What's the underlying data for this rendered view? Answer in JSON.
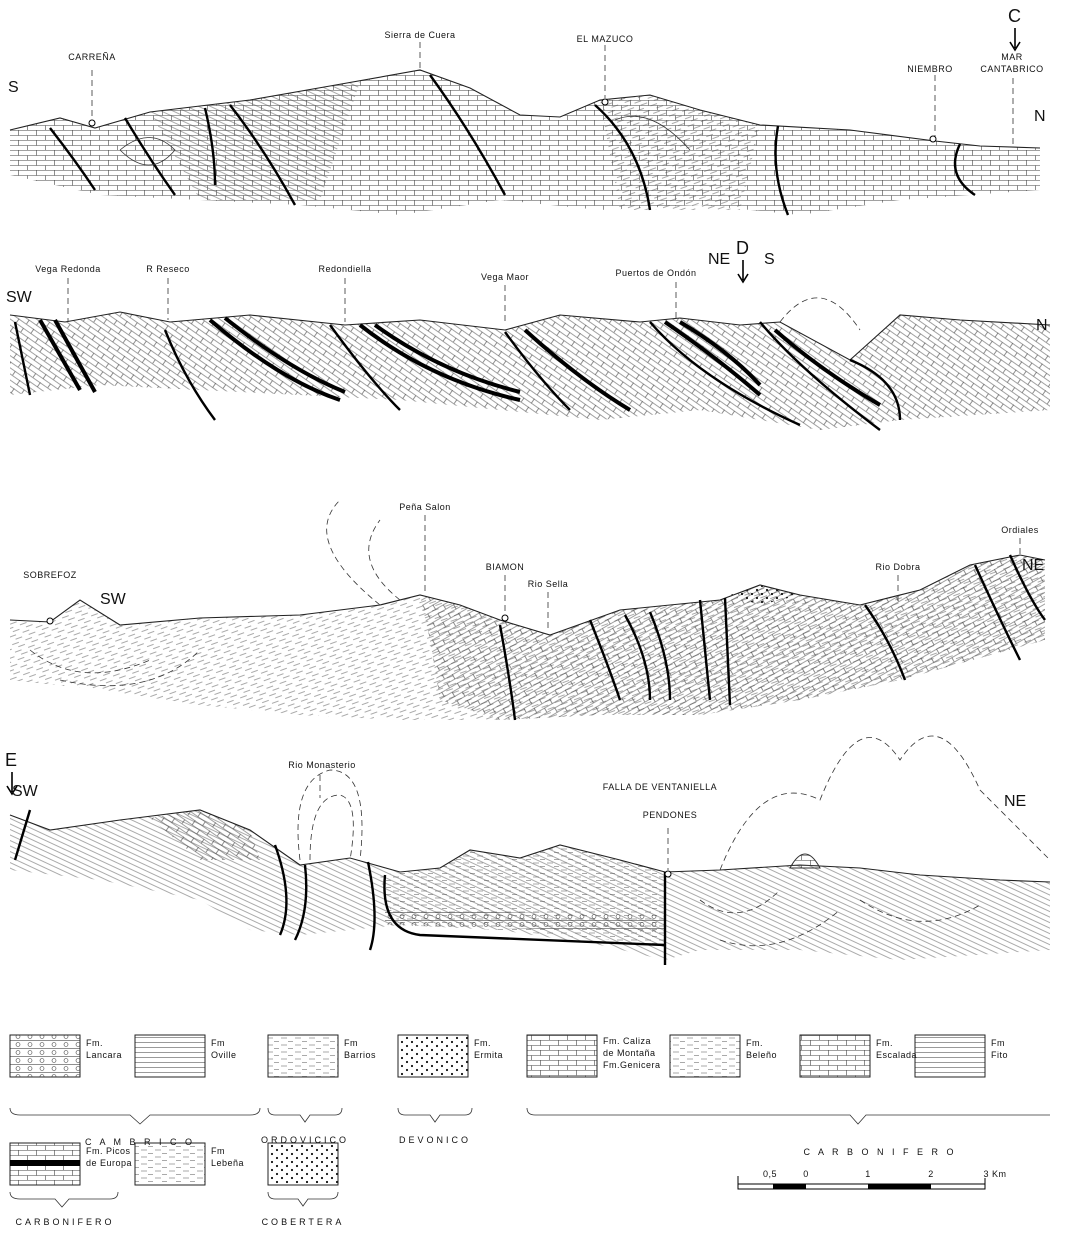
{
  "sections": [
    {
      "marker": "C",
      "left": "S",
      "right": "N",
      "places": [
        "CARREÑA",
        "Sierra de Cuera",
        "EL MAZUCO",
        "NIEMBRO",
        "MAR",
        "CANTABRICO"
      ]
    },
    {
      "marker": "D",
      "left": "SW",
      "right": "N",
      "orientation": [
        "NE",
        "S"
      ],
      "places": [
        "Vega Redonda",
        "R Reseco",
        "Redondiella",
        "Vega Maor",
        "Puertos de Ondón"
      ]
    },
    {
      "left": "SW",
      "right": "NE",
      "places": [
        "SOBREFOZ",
        "Peña Salon",
        "BIAMON",
        "Rio Sella",
        "Rio Dobra",
        "Ordiales"
      ]
    },
    {
      "marker": "E",
      "left": "SW",
      "right": "NE",
      "fault": "FALLA DE VENTANIELLA",
      "places": [
        "Rio Monasterio",
        "PENDONES"
      ]
    }
  ],
  "legend": {
    "formations": [
      {
        "lines": [
          "Fm.",
          "Lancara"
        ]
      },
      {
        "lines": [
          "Fm",
          "Oville"
        ]
      },
      {
        "lines": [
          "Fm",
          "Barrios"
        ]
      },
      {
        "lines": [
          "Fm.",
          "Ermita"
        ]
      },
      {
        "lines": [
          "Fm. Caliza",
          "de Montaña",
          "Fm.Genicera"
        ]
      },
      {
        "lines": [
          "Fm.",
          "Beleño"
        ]
      },
      {
        "lines": [
          "Fm.",
          "Escalada"
        ]
      },
      {
        "lines": [
          "Fm",
          "Fito"
        ]
      },
      {
        "lines": [
          "Fm. Picos",
          "de Europa"
        ]
      },
      {
        "lines": [
          "Fm",
          "Lebeña"
        ]
      }
    ],
    "groups": [
      "C A M B R I C O",
      "ORDOVICICO",
      "DEVONICO",
      "C A R B O N I F E R O",
      "CARBONIFERO",
      "COBERTERA"
    ]
  },
  "scale": {
    "labels": [
      "0,5",
      "0",
      "1",
      "2",
      "3 Km"
    ]
  }
}
